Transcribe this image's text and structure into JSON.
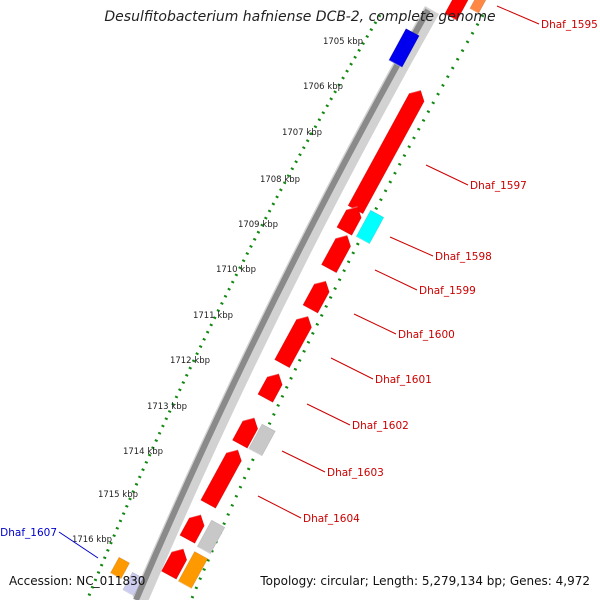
{
  "title": "Desulfitobacterium hafniense DCB-2, complete genome",
  "footer": {
    "accession": "Accession: NC_011830",
    "summary": "Topology: circular; Length: 5,279,134 bp; Genes: 4,972"
  },
  "ticks": [
    "1705 kbp",
    "1706 kbp",
    "1707 kbp",
    "1708 kbp",
    "1709 kbp",
    "1710 kbp",
    "1711 kbp",
    "1712 kbp",
    "1713 kbp",
    "1714 kbp",
    "1715 kbp",
    "1716 kbp"
  ],
  "gene_labels": [
    "Dhaf_1595",
    "Dhaf_1597",
    "Dhaf_1598",
    "Dhaf_1599",
    "Dhaf_1600",
    "Dhaf_1601",
    "Dhaf_1602",
    "Dhaf_1603",
    "Dhaf_1604",
    "Dhaf_1607"
  ],
  "colors": {
    "red_gene": "#ff0000",
    "blue_gene": "#0000ee",
    "cyan_gene": "#00ffff",
    "grey_gene": "#c8c8c8",
    "orange_gene": "#ff9900",
    "label_red": "#cc0000",
    "label_blue": "#0000cc",
    "backbone": "#8a8a8a",
    "tick_dots": "#118811"
  }
}
